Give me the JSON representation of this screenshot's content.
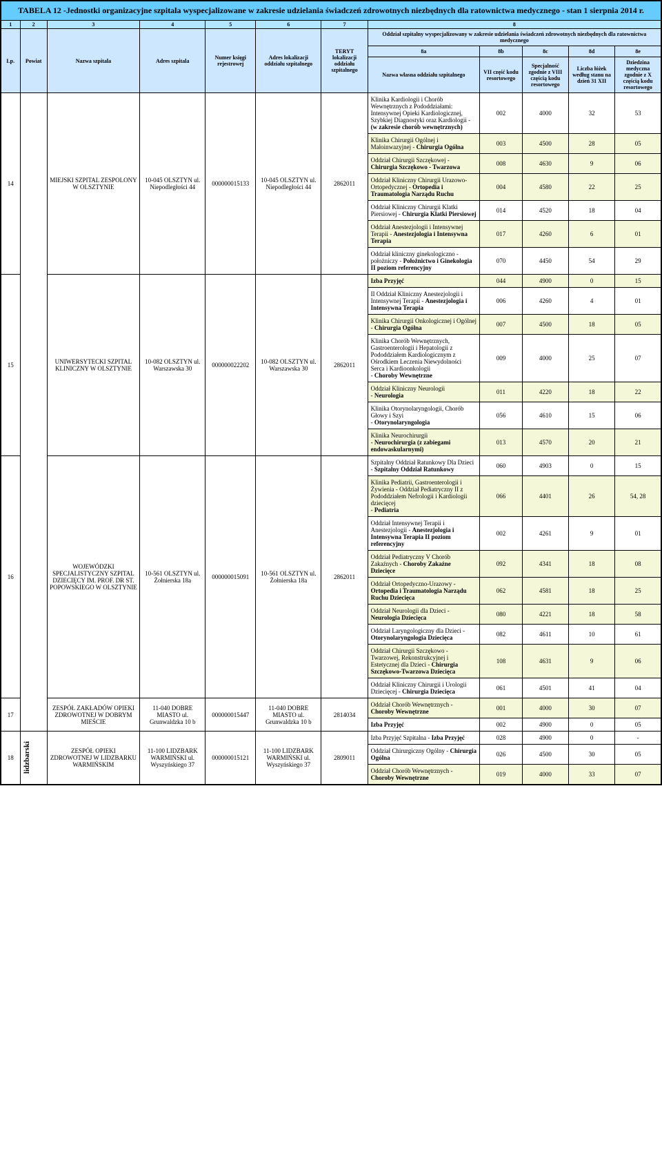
{
  "title": "TABELA 12 -Jednostki organizacyjne szpitala wyspecjalizowane w zakresie udzielania świadczeń zdrowotnych niezbędnych dla ratownictwa medycznego - stan 1 sierpnia 2014  r.",
  "colnums": [
    "1",
    "2",
    "3",
    "4",
    "5",
    "6",
    "7",
    "8"
  ],
  "headers": {
    "lp": "Lp.",
    "powiat": "Powiat",
    "nazwa": "Nazwa szpitala",
    "adres": "Adres szpitala",
    "ksiega": "Numer księgi rejestrowej",
    "loc": "Adres lokalizacji oddziału szpitalnego",
    "teryt": "TERYT lokalizacji oddziału szpitalnego",
    "top8": "Oddział  szpitalny  wyspecjalizowany w zakresie udzielania świadczeń zdrowotnych niezbędnych dla ratownictwa medycznego",
    "s8a": "8a",
    "s8b": "8b",
    "s8c": "8c",
    "s8d": "8d",
    "s8e": "8e",
    "h8a": "Nazwa własna oddziału szpitalnego",
    "h8b": "VII część kodu resortowego",
    "h8c": "Specjalność zgodnie z VIII częścią kodu resortowego",
    "h8d": "Liczba łóżek według stanu na dzień 31 XII",
    "h8e": "Dziedzina medyczna zgodnie z X częścią kodu resortowego"
  },
  "hospitals": [
    {
      "lp": "14",
      "name": "MIEJSKI SZPITAL ZESPOLONY W OLSZTYNIE",
      "addr": "10-045 OLSZTYN ul. Niepodległości 44",
      "ksiega": "000000015133",
      "loc": "10-045 OLSZTYN ul. Niepodległości 44",
      "teryt": "2862011",
      "rows": [
        {
          "n": "Klinika Kardiologii i Chorób Wewnętrznych z Pododdziałami: Intensywnej Opieki Kardiologicznej, Szybkiej Diagnostyki oraz Kardiologii - <b>(w zakresie chorób wewnętrznych)</b>",
          "b": "002",
          "c": "4000",
          "d": "32",
          "e": "53",
          "hl": false
        },
        {
          "n": "Klinika Chirurgii Ogólnej i Małoinwazyjnej - <b>Chirurgia Ogólna</b>",
          "b": "003",
          "c": "4500",
          "d": "28",
          "e": "05",
          "hl": true
        },
        {
          "n": "Oddział Chirurgii Szczękowej - <b>Chirurgia Szczękowo - Twarzowa</b>",
          "b": "008",
          "c": "4630",
          "d": "9",
          "e": "06",
          "hl": true
        },
        {
          "n": "Oddział Kliniczny Chirurgii Urazowo-Ortopedycznej - <b>Ortopedia i Traumatologia Narządu Ruchu</b>",
          "b": "004",
          "c": "4580",
          "d": "22",
          "e": "25",
          "hl": true
        },
        {
          "n": "Oddział Kliniczny Chirurgii Klatki Piersiowej - <b>Chirurgia Klatki Piersiowej</b>",
          "b": "014",
          "c": "4520",
          "d": "18",
          "e": "04",
          "hl": false
        },
        {
          "n": "Oddział Anestezjologii i Intensywnej Terapii - <b>Anestezjologia i Intensywna Terapia</b>",
          "b": "017",
          "c": "4260",
          "d": "6",
          "e": "01",
          "hl": true
        },
        {
          "n": "Oddział kliniczny ginekologiczno - położniczy - <b>Położnictwo i Ginekologia II poziom referencyjny</b>",
          "b": "070",
          "c": "4450",
          "d": "54",
          "e": "29",
          "hl": false
        }
      ]
    },
    {
      "lp": "15",
      "name": "UNIWERSYTECKI SZPITAL KLINICZNY W OLSZTYNIE",
      "addr": "10-082 OLSZTYN ul. Warszawska 30",
      "ksiega": "000000022202",
      "loc": "10-082 OLSZTYN ul. Warszawska 30",
      "teryt": "2862011",
      "rows": [
        {
          "n": "<b>Izba Przyjęć</b>",
          "b": "044",
          "c": "4900",
          "d": "0",
          "e": "15",
          "hl": true
        },
        {
          "n": " II Oddział Kliniczny Anestezjologii i Intensywnej Terapii - <b>Anestezjologia i Intensywna Terapia</b>",
          "b": "006",
          "c": "4260",
          "d": "4",
          "e": "01",
          "hl": false
        },
        {
          "n": "Klinika Chirurgii Onkologicznej i Ogólnej<br>- <b>Chirurgia Ogólna</b>",
          "b": "007",
          "c": "4500",
          "d": "18",
          "e": "05",
          "hl": true
        },
        {
          "n": "Klinika Chorób Wewnętrznych, Gastroenterologii i Hepatologii z Pododdziałem Kardiologicznym z Ośrodkiem Leczenia Niewydolności Serca i Kardioonkologii<br>- <b>Choroby Wewnętrzne</b>",
          "b": "009",
          "c": "4000",
          "d": "25",
          "e": "07",
          "hl": false
        },
        {
          "n": "Oddział Kliniczny Neurologii<br>- <b>Neurologia</b>",
          "b": "011",
          "c": "4220",
          "d": "18",
          "e": "22",
          "hl": true
        },
        {
          "n": "Klinika Otorynolaryngologii, Chorób Głowy i Szyi<br>- <b>Otorynolaryngologia</b>",
          "b": "056",
          "c": "4610",
          "d": "15",
          "e": "06",
          "hl": false
        },
        {
          "n": "Klinika Neurochirurgii<br>- <b>Neurochirurgia (z zabiegami endowaskularnymi)</b>",
          "b": "013",
          "c": "4570",
          "d": "20",
          "e": "21",
          "hl": true
        }
      ]
    },
    {
      "lp": "16",
      "name": "WOJEWÓDZKI SPECJALISTYCZNY SZPITAL DZIECIĘCY IM. PROF. DR ST. POPOWSKIEGO W OLSZTYNIE",
      "addr": "10-561 OLSZTYN ul. Żołnierska 18a",
      "ksiega": "000000015091",
      "loc": "10-561 OLSZTYN ul. Żołnierska 18a",
      "teryt": "2862011",
      "rows": [
        {
          "n": "Szpitalny Oddział Ratunkowy Dla Dzieci - <b>Szpitalny Oddział Ratunkowy</b>",
          "b": "060",
          "c": "4903",
          "d": "0",
          "e": "15",
          "hl": false
        },
        {
          "n": "Klinika Pediatrii, Gastroenterologii i Żywienia - Oddział Pediatryczny II z Pododdziałem Nefrologii i Kardiologii dziecięcej<br>- <b>Pediatria</b>",
          "b": "066",
          "c": "4401",
          "d": "26",
          "e": "54, 28",
          "hl": true
        },
        {
          "n": "Oddział Intensywnej Terapii i Anestezjologii - <b>Anestezjologia i Intensywna Terapia II poziom referencyjny</b>",
          "b": "002",
          "c": "4261",
          "d": "9",
          "e": "01",
          "hl": false
        },
        {
          "n": "Oddział Pediatryczny V Chorób Zakaźnych - <b>Choroby Zakaźne Dziecięce</b>",
          "b": "092",
          "c": "4341",
          "d": "18",
          "e": "08",
          "hl": true
        },
        {
          "n": "Oddział Ortopedyczno-Urazowy - <b>Ortopedia i Traumatologia Narządu Ruchu Dziecięca</b>",
          "b": "062",
          "c": "4581",
          "d": "18",
          "e": "25",
          "hl": true
        },
        {
          "n": "Oddział Neurologii dla Dzieci  - <b>Neurologia Dziecięca</b>",
          "b": "080",
          "c": "4221",
          "d": "18",
          "e": "58",
          "hl": true
        },
        {
          "n": "Oddział Laryngologiczny dla Dzieci - <b>Otorynolaryngologia Dziecięca</b>",
          "b": "082",
          "c": "4611",
          "d": "10",
          "e": "61",
          "hl": false
        },
        {
          "n": "Oddział Chirurgii Szczękowo - Twarzowej, Rekonstrukcyjnej i Estetycznej dla Dzieci - <b>Chirurgia Szczękowo-Twarzowa Dziecięca</b>",
          "b": "108",
          "c": "4631",
          "d": "9",
          "e": "06",
          "hl": true
        },
        {
          "n": "Oddział Kliniczny Chirurgii i Urologii Dziecięcej - <b>Chirurgia Dziecięca</b>",
          "b": "061",
          "c": "4501",
          "d": "41",
          "e": "04",
          "hl": false
        }
      ]
    },
    {
      "lp": "17",
      "name": "ZESPÓŁ ZAKŁADÓW OPIEKI ZDROWOTNEJ W DOBRYM MIEŚCIE",
      "addr": "11-040 DOBRE MIASTO ul. Grunwaldzka 10 b",
      "ksiega": "000000015447",
      "loc": "11-040 DOBRE MIASTO ul. Grunwaldzka 10 b",
      "teryt": "2814034",
      "rows": [
        {
          "n": "Oddział Chorób Wewnętrznych - <b>Choroby Wewnętrzne</b>",
          "b": "001",
          "c": "4000",
          "d": "30",
          "e": "07",
          "hl": true
        },
        {
          "n": "<b>Izba Przyjęć</b>",
          "b": "002",
          "c": "4900",
          "d": "0",
          "e": "05",
          "hl": false
        }
      ]
    },
    {
      "lp": "18",
      "powiat": "lidzbarski",
      "name": "ZESPÓŁ OPIEKI ZDROWOTNEJ W LIDZBARKU WARMIŃSKIM",
      "addr": "11-100 LIDZBARK WARMIŃSKI ul. Wyszyńskiego 37",
      "ksiega": "000000015121",
      "loc": "11-100 LIDZBARK WARMIŃSKI ul. Wyszyńskiego 37",
      "teryt": "2809011",
      "rows": [
        {
          "n": "Izba Przyjęć Szpitalna - <b>Izba Przyjęć</b>",
          "b": "028",
          "c": "4900",
          "d": "0",
          "e": "-",
          "hl": false
        },
        {
          "n": "Oddział Chirurgiczny Ogólny - <b>Chirurgia Ogólna</b>",
          "b": "026",
          "c": "4500",
          "d": "30",
          "e": "05",
          "hl": false
        },
        {
          "n": "Oddział Chorób Wewnętrznych - <b>Choroby Wewnętrzne</b>",
          "b": "019",
          "c": "4000",
          "d": "33",
          "e": "07",
          "hl": true
        }
      ]
    }
  ]
}
